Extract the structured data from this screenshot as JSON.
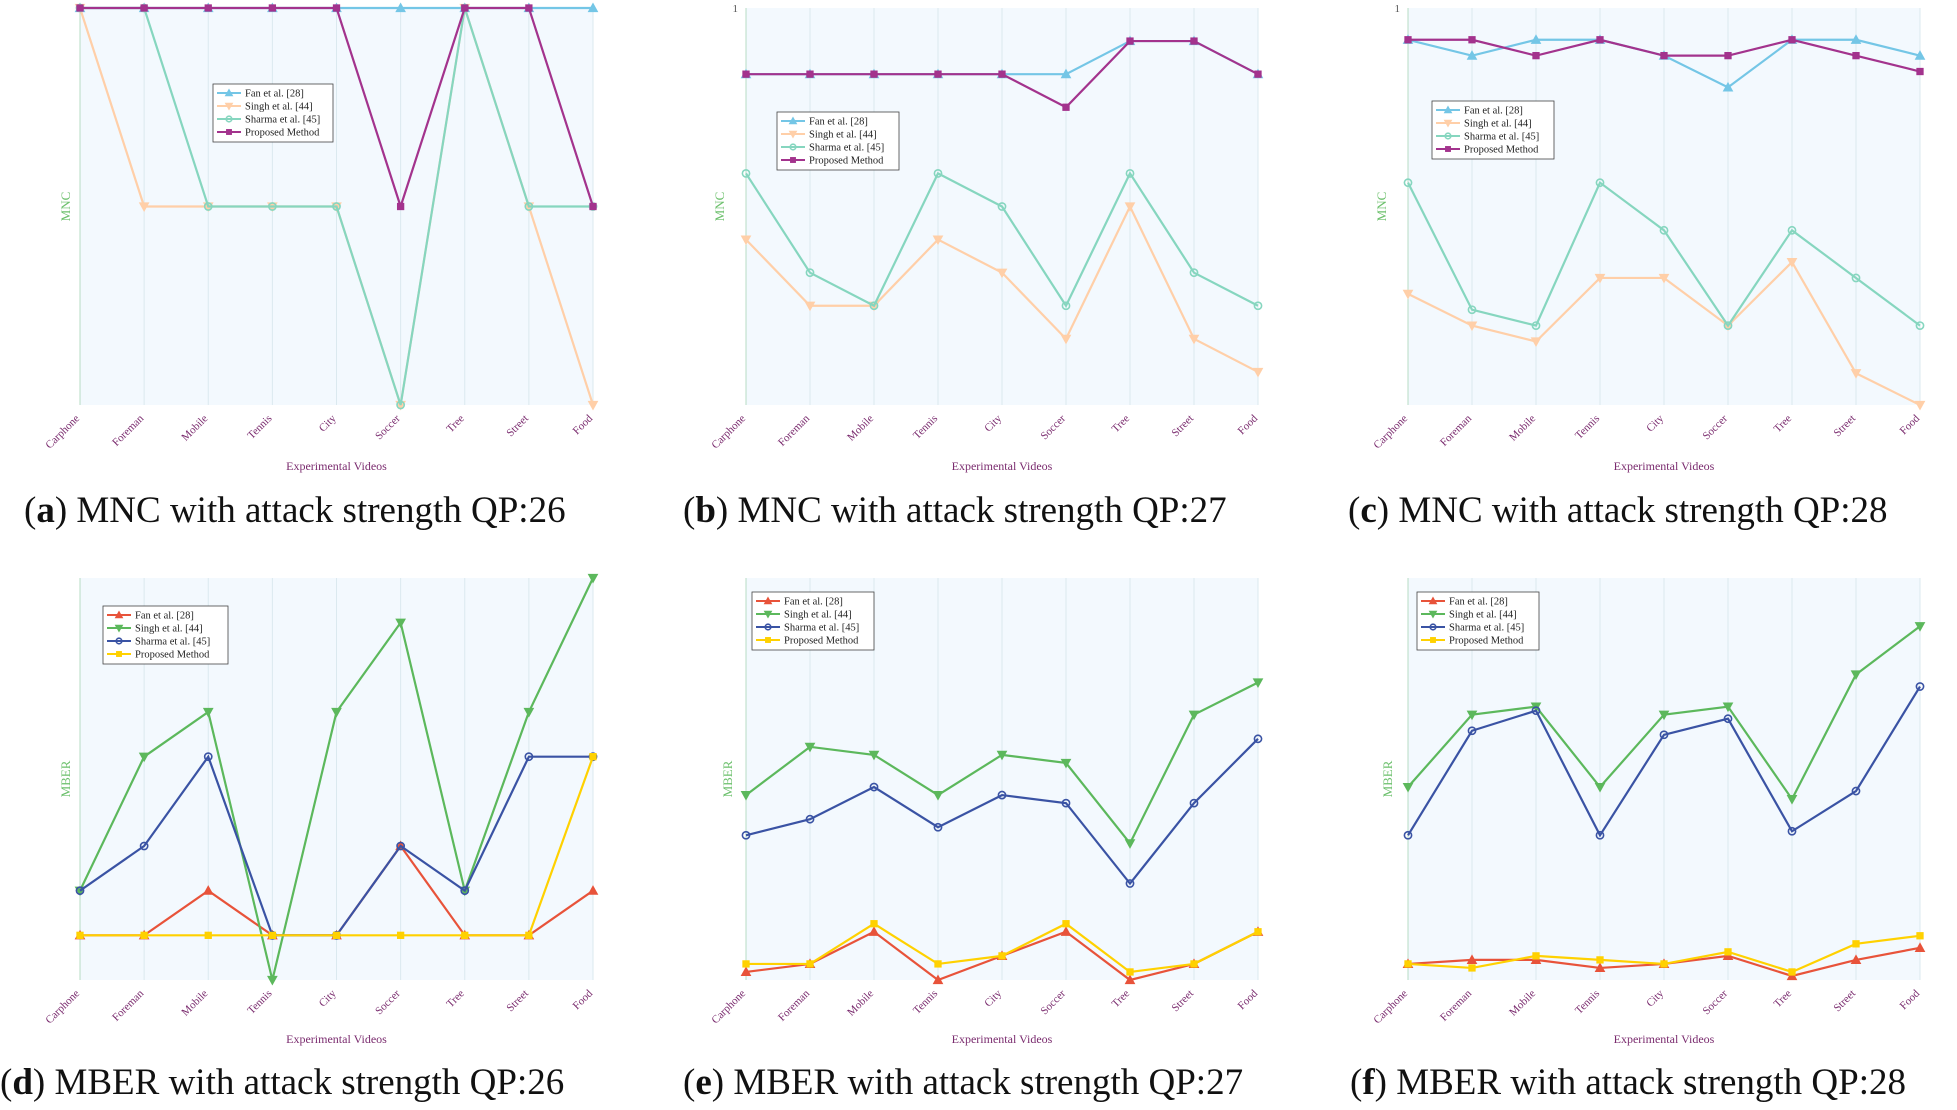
{
  "chart_data": [
    {
      "panel": "a",
      "type": "line",
      "metric": "MNC",
      "caption_label": "a",
      "caption_text": "MNC with attack strength QP:26",
      "ylabel": "MNC",
      "xlabel": "Experimental Videos",
      "ytick_label": "",
      "ylim": [
        0,
        1
      ],
      "categories": [
        "Carphone",
        "Foreman",
        "Mobile",
        "Tennis",
        "City",
        "Soccer",
        "Tree",
        "Street",
        "Food"
      ],
      "legend_position": "upper-center",
      "series": [
        {
          "name": "Fan et al. [28]",
          "color": "#74c6e6",
          "marker": "triangle-up",
          "values": [
            1,
            1,
            1,
            1,
            1,
            1,
            1,
            1,
            1
          ]
        },
        {
          "name": "Singh et al. [44]",
          "color": "#ffcfa8",
          "marker": "triangle-down",
          "values": [
            1,
            0.5,
            0.5,
            0.5,
            0.5,
            0,
            1,
            0.5,
            0
          ]
        },
        {
          "name": "Sharma et al. [45]",
          "color": "#86d6bf",
          "marker": "circle",
          "values": [
            1,
            1,
            0.5,
            0.5,
            0.5,
            0,
            1,
            0.5,
            0.5
          ]
        },
        {
          "name": "Proposed Method",
          "color": "#a3338d",
          "marker": "square",
          "values": [
            1,
            1,
            1,
            1,
            1,
            0.5,
            1,
            1,
            0.5
          ]
        }
      ]
    },
    {
      "panel": "b",
      "type": "line",
      "metric": "MNC",
      "caption_label": "b",
      "caption_text": "MNC with attack strength QP:27",
      "ylabel": "MNC",
      "xlabel": "Experimental Videos",
      "ytick_label": "1",
      "ylim": [
        0.88,
        1
      ],
      "categories": [
        "Carphone",
        "Foreman",
        "Mobile",
        "Tennis",
        "City",
        "Soccer",
        "Tree",
        "Street",
        "Food"
      ],
      "legend_position": "upper-left",
      "series": [
        {
          "name": "Fan et al. [28]",
          "color": "#74c6e6",
          "marker": "triangle-up",
          "values": [
            0.98,
            0.98,
            0.98,
            0.98,
            0.98,
            0.98,
            0.99,
            0.99,
            0.98
          ]
        },
        {
          "name": "Singh et al. [44]",
          "color": "#ffcfa8",
          "marker": "triangle-down",
          "values": [
            0.93,
            0.91,
            0.91,
            0.93,
            0.92,
            0.9,
            0.94,
            0.9,
            0.89
          ]
        },
        {
          "name": "Sharma et al. [45]",
          "color": "#86d6bf",
          "marker": "circle",
          "values": [
            0.95,
            0.92,
            0.91,
            0.95,
            0.94,
            0.91,
            0.95,
            0.92,
            0.91
          ]
        },
        {
          "name": "Proposed Method",
          "color": "#a3338d",
          "marker": "square",
          "values": [
            0.98,
            0.98,
            0.98,
            0.98,
            0.98,
            0.97,
            0.99,
            0.99,
            0.98
          ]
        }
      ]
    },
    {
      "panel": "c",
      "type": "line",
      "metric": "MNC",
      "caption_label": "c",
      "caption_text": "MNC with attack strength QP:28",
      "ylabel": "MNC",
      "xlabel": "Experimental Videos",
      "ytick_label": "1",
      "ylim": [
        0.75,
        1
      ],
      "categories": [
        "Carphone",
        "Foreman",
        "Mobile",
        "Tennis",
        "City",
        "Soccer",
        "Tree",
        "Street",
        "Food"
      ],
      "legend_position": "upper-left",
      "series": [
        {
          "name": "Fan et al. [28]",
          "color": "#74c6e6",
          "marker": "triangle-up",
          "values": [
            0.98,
            0.97,
            0.98,
            0.98,
            0.97,
            0.95,
            0.98,
            0.98,
            0.97
          ]
        },
        {
          "name": "Singh et al. [44]",
          "color": "#ffcfa8",
          "marker": "triangle-down",
          "values": [
            0.82,
            0.8,
            0.79,
            0.83,
            0.83,
            0.8,
            0.84,
            0.77,
            0.75
          ]
        },
        {
          "name": "Sharma et al. [45]",
          "color": "#86d6bf",
          "marker": "circle",
          "values": [
            0.89,
            0.81,
            0.8,
            0.89,
            0.86,
            0.8,
            0.86,
            0.83,
            0.8
          ]
        },
        {
          "name": "Proposed Method",
          "color": "#a3338d",
          "marker": "square",
          "values": [
            0.98,
            0.98,
            0.97,
            0.98,
            0.97,
            0.97,
            0.98,
            0.97,
            0.96
          ]
        }
      ]
    },
    {
      "panel": "d",
      "type": "line",
      "metric": "MBER",
      "caption_label": "d",
      "caption_text": "MBER with attack strength QP:26",
      "ylabel": "MBER",
      "xlabel": "Experimental Videos",
      "ytick_label": "",
      "ylim": [
        0,
        9
      ],
      "categories": [
        "Carphone",
        "Foreman",
        "Mobile",
        "Tennis",
        "City",
        "Soccer",
        "Tree",
        "Street",
        "Food"
      ],
      "legend_position": "upper-left",
      "series": [
        {
          "name": "Fan et al. [28]",
          "color": "#e8533a",
          "marker": "triangle-up",
          "values": [
            1,
            1,
            2,
            1,
            1,
            3,
            1,
            1,
            2
          ]
        },
        {
          "name": "Singh et al. [44]",
          "color": "#5cb85c",
          "marker": "triangle-down",
          "values": [
            2,
            5,
            6,
            0,
            6,
            8,
            2,
            6,
            9
          ]
        },
        {
          "name": "Sharma et al. [45]",
          "color": "#3a53a4",
          "marker": "circle",
          "values": [
            2,
            3,
            5,
            1,
            1,
            3,
            2,
            5,
            5
          ]
        },
        {
          "name": "Proposed Method",
          "color": "#ffd100",
          "marker": "square",
          "values": [
            1,
            1,
            1,
            1,
            1,
            1,
            1,
            1,
            5
          ]
        }
      ]
    },
    {
      "panel": "e",
      "type": "line",
      "metric": "MBER",
      "caption_label": "e",
      "caption_text": "MBER with attack strength QP:27",
      "ylabel": "MBER",
      "xlabel": "Experimental Videos",
      "ytick_label": "",
      "ylim": [
        0,
        10
      ],
      "categories": [
        "Carphone",
        "Foreman",
        "Mobile",
        "Tennis",
        "City",
        "Soccer",
        "Tree",
        "Street",
        "Food"
      ],
      "legend_position": "upper-left",
      "series": [
        {
          "name": "Fan et al. [28]",
          "color": "#e8533a",
          "marker": "triangle-up",
          "values": [
            0.2,
            0.4,
            1.2,
            0,
            0.6,
            1.2,
            0,
            0.4,
            1.2
          ]
        },
        {
          "name": "Singh et al. [44]",
          "color": "#5cb85c",
          "marker": "triangle-down",
          "values": [
            4.6,
            5.8,
            5.6,
            4.6,
            5.6,
            5.4,
            3.4,
            6.6,
            7.4
          ]
        },
        {
          "name": "Sharma et al. [45]",
          "color": "#3a53a4",
          "marker": "circle",
          "values": [
            3.6,
            4,
            4.8,
            3.8,
            4.6,
            4.4,
            2.4,
            4.4,
            6
          ]
        },
        {
          "name": "Proposed Method",
          "color": "#ffd100",
          "marker": "square",
          "values": [
            0.4,
            0.4,
            1.4,
            0.4,
            0.6,
            1.4,
            0.2,
            0.4,
            1.2
          ]
        }
      ]
    },
    {
      "panel": "f",
      "type": "line",
      "metric": "MBER",
      "caption_label": "f",
      "caption_text": "MBER with attack strength QP:28",
      "ylabel": "MBER",
      "xlabel": "Experimental Videos",
      "ytick_label": "",
      "ylim": [
        0,
        10
      ],
      "categories": [
        "Carphone",
        "Foreman",
        "Mobile",
        "Tennis",
        "City",
        "Soccer",
        "Tree",
        "Street",
        "Food"
      ],
      "legend_position": "upper-left",
      "series": [
        {
          "name": "Fan et al. [28]",
          "color": "#e8533a",
          "marker": "triangle-up",
          "values": [
            0.4,
            0.5,
            0.5,
            0.3,
            0.4,
            0.6,
            0.1,
            0.5,
            0.8
          ]
        },
        {
          "name": "Singh et al. [44]",
          "color": "#5cb85c",
          "marker": "triangle-down",
          "values": [
            4.8,
            6.6,
            6.8,
            4.8,
            6.6,
            6.8,
            4.5,
            7.6,
            8.8
          ]
        },
        {
          "name": "Sharma et al. [45]",
          "color": "#3a53a4",
          "marker": "circle",
          "values": [
            3.6,
            6.2,
            6.7,
            3.6,
            6.1,
            6.5,
            3.7,
            4.7,
            7.3
          ]
        },
        {
          "name": "Proposed Method",
          "color": "#ffd100",
          "marker": "square",
          "values": [
            0.4,
            0.3,
            0.6,
            0.5,
            0.4,
            0.7,
            0.2,
            0.9,
            1.1
          ]
        }
      ]
    }
  ]
}
